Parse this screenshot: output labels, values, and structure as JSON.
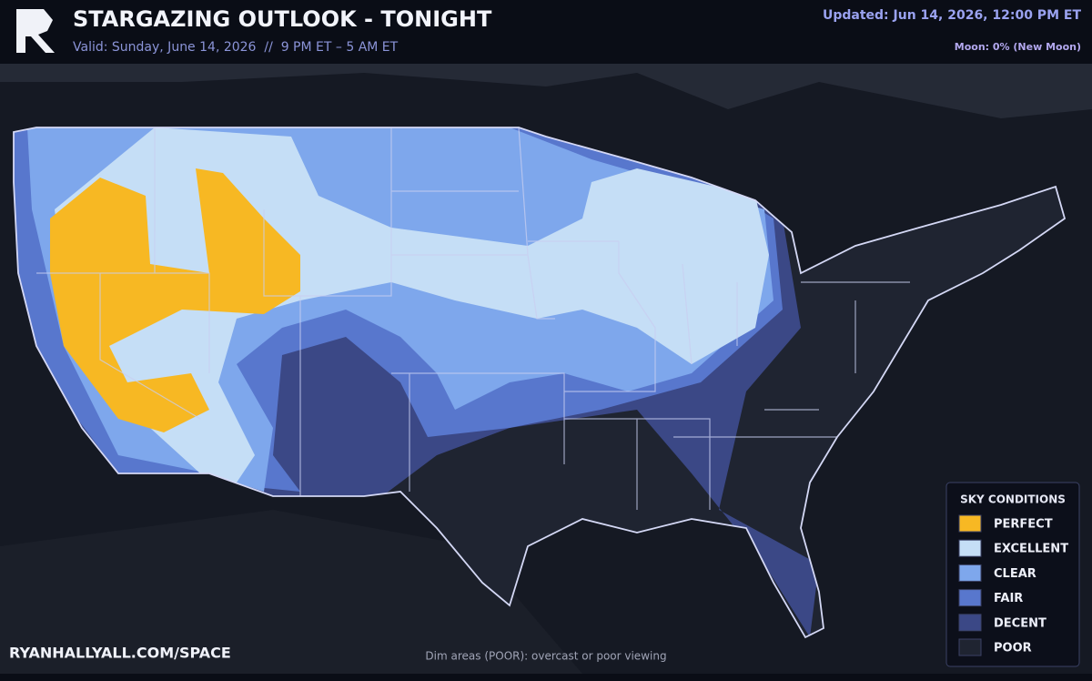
{
  "header": {
    "title": "STARGAZING OUTLOOK - TONIGHT",
    "subtitle": "Valid: Sunday, June 14, 2026  //  9 PM ET – 5 AM ET",
    "updated": "Updated: Jun 14, 2026, 12:00 PM ET",
    "moon": "Moon: 0% (New Moon)"
  },
  "legend": {
    "title": "SKY CONDITIONS",
    "items": [
      {
        "label": "PERFECT",
        "color": "#f7b823"
      },
      {
        "label": "EXCELLENT",
        "color": "#c5def6"
      },
      {
        "label": "CLEAR",
        "color": "#7ea7ec"
      },
      {
        "label": "FAIR",
        "color": "#5877cd"
      },
      {
        "label": "DECENT",
        "color": "#3b4886"
      },
      {
        "label": "POOR",
        "color": "#1f2431"
      }
    ]
  },
  "footer": {
    "site": "RYANHALLYALL.COM/SPACE",
    "note": "Dim areas (POOR): overcast or poor viewing"
  }
}
